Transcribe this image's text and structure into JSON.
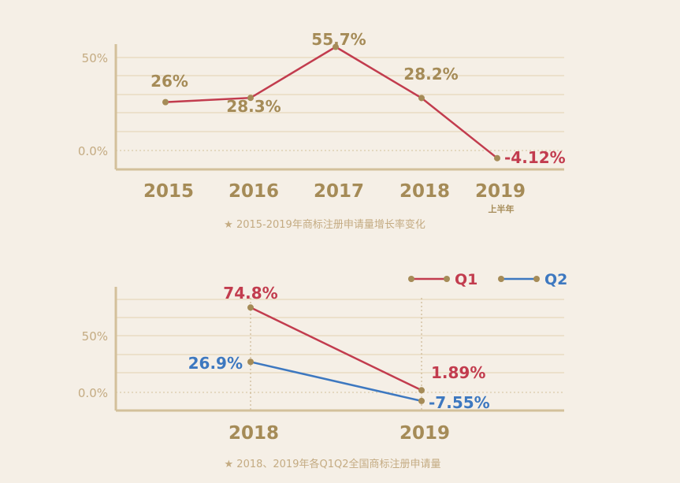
{
  "colors": {
    "background": "#f5efe6",
    "gold": "#a58b57",
    "q1": "#c23c4e",
    "q2": "#3d78c0",
    "grid": "#e2d2b0",
    "axis": "#d3c09b"
  },
  "chart_data": [
    {
      "type": "line",
      "categories": [
        "2015",
        "2016",
        "2017",
        "2018",
        "2019"
      ],
      "category_sublabels": [
        "",
        "",
        "",
        "",
        "上半年"
      ],
      "values": [
        26,
        28.3,
        55.7,
        28.2,
        -4.12
      ],
      "point_labels": [
        "26%",
        "28.3%",
        "55.7%",
        "28.2%",
        "-4.12%"
      ],
      "y_ticks": [
        "0.0%",
        "50%"
      ],
      "ylim": [
        0,
        50
      ],
      "grid": true,
      "caption": "★  2015-2019年商标注册申请量增长率变化"
    },
    {
      "type": "line",
      "categories": [
        "2018",
        "2019"
      ],
      "series": [
        {
          "name": "Q1",
          "values": [
            74.8,
            1.89
          ],
          "point_labels": [
            "74.8%",
            "1.89%"
          ]
        },
        {
          "name": "Q2",
          "values": [
            26.9,
            -7.55
          ],
          "point_labels": [
            "26.9%",
            "-7.55%"
          ]
        }
      ],
      "y_ticks": [
        "0.0%",
        "50%"
      ],
      "ylim": [
        0,
        50
      ],
      "grid": true,
      "legend": "top-right",
      "caption": "★  2018、2019年各Q1Q2全国商标注册申请量"
    }
  ]
}
